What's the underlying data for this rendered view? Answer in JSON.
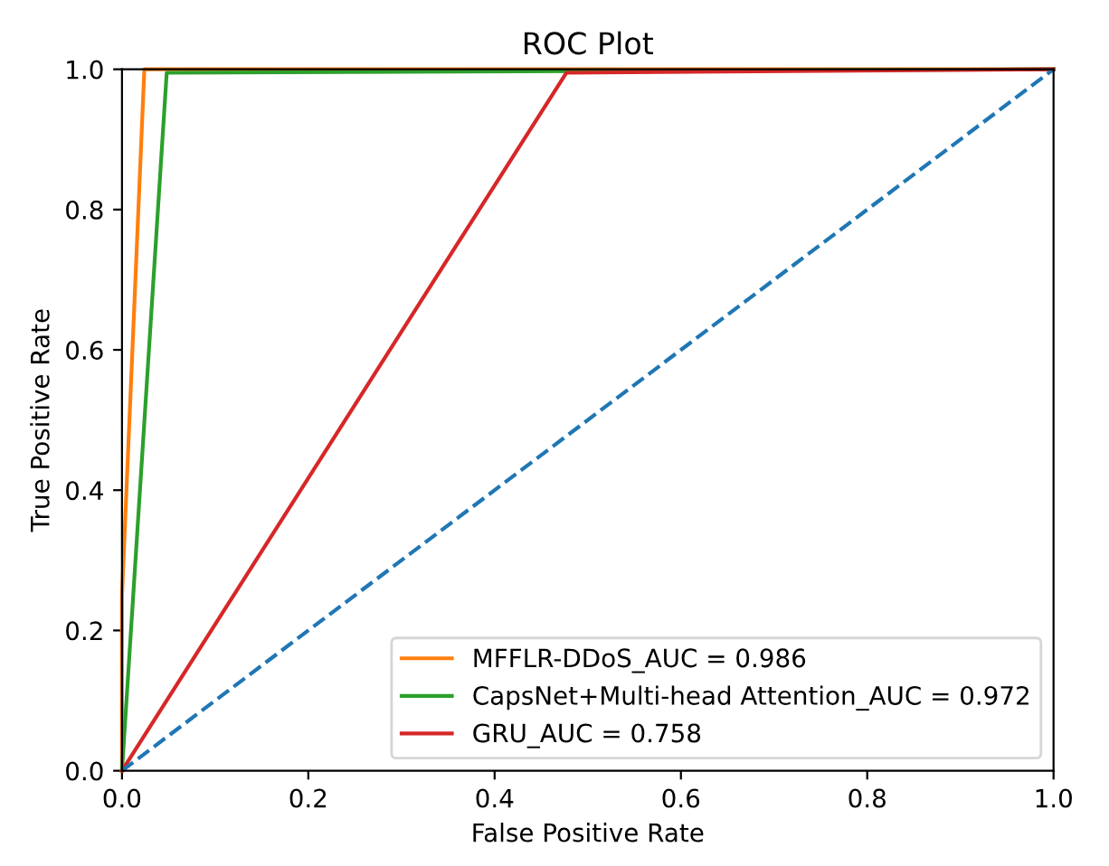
{
  "chart_data": {
    "type": "line",
    "title": "ROC Plot",
    "xlabel": "False Positive Rate",
    "ylabel": "True Positive Rate",
    "series": [
      {
        "name": "MFFLR-DDoS_AUC = 0.986",
        "color": "#ff7f0e",
        "x": [
          0,
          0,
          0.024,
          1
        ],
        "values": [
          0,
          0.25,
          1,
          1
        ]
      },
      {
        "name": "CapsNet+Multi-head Attention_AUC = 0.972",
        "color": "#2ca02c",
        "x": [
          0,
          0.048,
          1
        ],
        "values": [
          0,
          0.995,
          1
        ]
      },
      {
        "name": "GRU_AUC = 0.758",
        "color": "#d62728",
        "x": [
          0,
          0.477,
          1
        ],
        "values": [
          0,
          0.995,
          1
        ]
      },
      {
        "color": "#1f77b4",
        "x": [
          0,
          1
        ],
        "values": [
          0,
          1
        ],
        "line_style": "dashed"
      }
    ],
    "xlim": [
      0,
      1
    ],
    "ylim": [
      0,
      1
    ],
    "xticks": [
      {
        "value": 0,
        "label": "0.0"
      },
      0.2,
      0.4,
      0.6,
      0.8,
      {
        "value": 1,
        "label": "1.0"
      }
    ],
    "yticks": [
      {
        "value": 0,
        "label": "0.0"
      },
      0.2,
      0.4,
      0.6,
      0.8,
      {
        "value": 1,
        "label": "1.0"
      }
    ],
    "grid": false,
    "legend": "bottom right",
    "marker": "none",
    "line_style": "solid"
  }
}
